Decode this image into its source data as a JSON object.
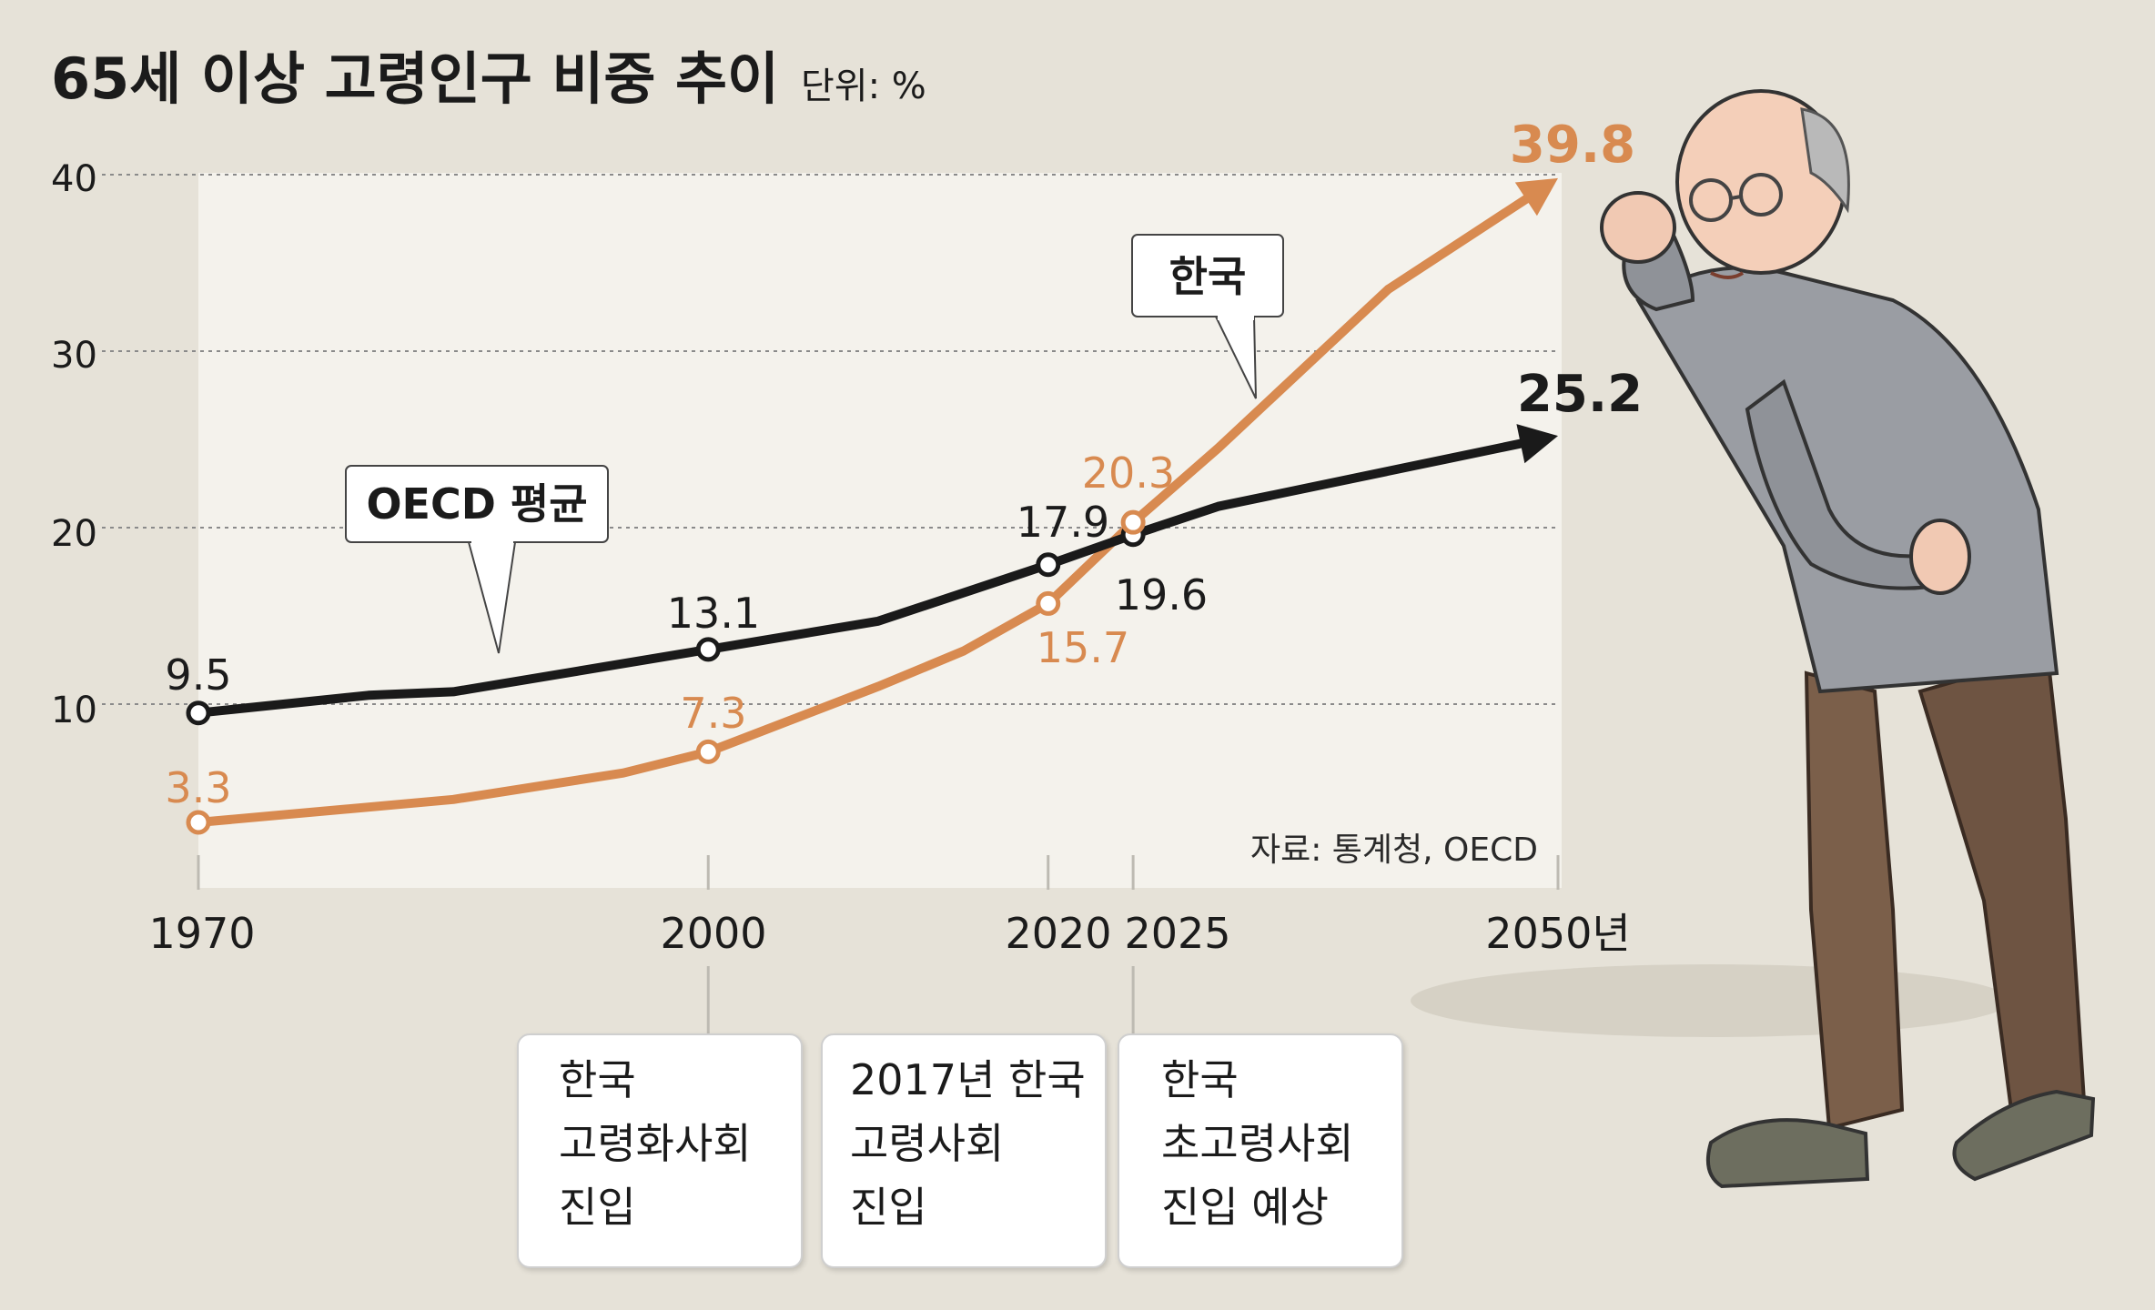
{
  "chart_data": {
    "type": "line",
    "title": "65세 이상 고령인구 비중 추이",
    "unit_label": "단위: %",
    "ylim": [
      0,
      40
    ],
    "yticks": [
      "10",
      "20",
      "30",
      "40"
    ],
    "xlim": [
      1970,
      2050
    ],
    "x_ticks": [
      "1970",
      "2000",
      "2020",
      "2025",
      "2050년"
    ],
    "x_tick_values": [
      1970,
      2000,
      2020,
      2025,
      2050
    ],
    "grid": true,
    "series": [
      {
        "name": "OECD 평균",
        "color": "#1a1a1a",
        "line": [
          [
            1970,
            9.5
          ],
          [
            1980,
            10.5
          ],
          [
            1985,
            10.7
          ],
          [
            2000,
            13.1
          ],
          [
            2010,
            14.7
          ],
          [
            2020,
            17.9
          ],
          [
            2025,
            19.6
          ],
          [
            2030,
            21.2
          ],
          [
            2040,
            23.2
          ],
          [
            2050,
            25.2
          ]
        ],
        "points": [
          {
            "x": 1970,
            "y": 9.5,
            "label": "9.5"
          },
          {
            "x": 2000,
            "y": 13.1,
            "label": "13.1"
          },
          {
            "x": 2020,
            "y": 17.9,
            "label": "17.9"
          },
          {
            "x": 2025,
            "y": 19.6,
            "label": "19.6"
          },
          {
            "x": 2050,
            "y": 25.2,
            "label": "25.2"
          }
        ]
      },
      {
        "name": "한국",
        "color": "#d88a50",
        "line": [
          [
            1970,
            3.3
          ],
          [
            1985,
            4.6
          ],
          [
            1995,
            6.1
          ],
          [
            2000,
            7.3
          ],
          [
            2010,
            11.0
          ],
          [
            2015,
            13.0
          ],
          [
            2020,
            15.7
          ],
          [
            2025,
            20.3
          ],
          [
            2030,
            24.5
          ],
          [
            2040,
            33.5
          ],
          [
            2050,
            39.8
          ]
        ],
        "points": [
          {
            "x": 1970,
            "y": 3.3,
            "label": "3.3"
          },
          {
            "x": 2000,
            "y": 7.3,
            "label": "7.3"
          },
          {
            "x": 2020,
            "y": 15.7,
            "label": "15.7"
          },
          {
            "x": 2025,
            "y": 20.3,
            "label": "20.3"
          },
          {
            "x": 2050,
            "y": 39.8,
            "label": "39.8"
          }
        ]
      }
    ],
    "legend_labels": {
      "oecd": "OECD 평균",
      "korea": "한국"
    },
    "source": "자료: 통계청, OECD"
  },
  "annotations": [
    {
      "lines": [
        "한국",
        "고령화사회",
        "진입"
      ]
    },
    {
      "lines": [
        "2017년 한국",
        "고령사회",
        "진입"
      ]
    },
    {
      "lines": [
        "한국",
        "초고령사회",
        "진입 예상"
      ]
    }
  ],
  "colors": {
    "background": "#e6e2d8",
    "plot_area": "#f4f2ec",
    "oecd": "#1a1a1a",
    "korea": "#d88a50"
  },
  "illustration": {
    "icon": "elderly-man-illustration"
  }
}
